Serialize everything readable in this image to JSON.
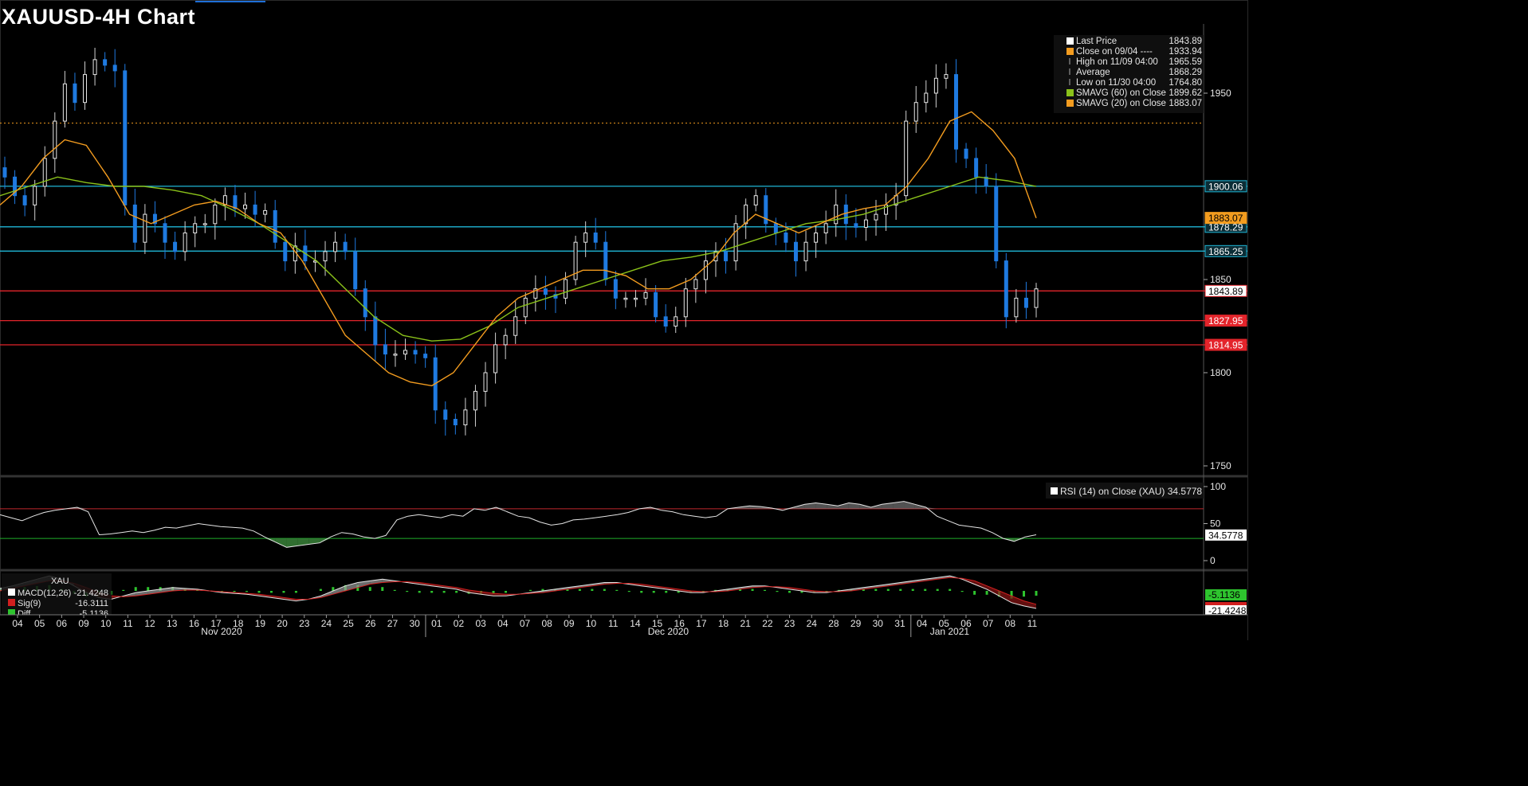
{
  "title": "XAUUSD-4H Chart",
  "colors": {
    "background": "#000000",
    "up_candle": "#e8e8e8",
    "down_candle": "#1f7ae0",
    "sma20": "#f39c1f",
    "sma60": "#8bc21a",
    "cyan_level": "#1fb6d6",
    "red_level": "#e3242b",
    "rsi_line": "#e6e6e6",
    "rsi_upper": "#c0272d",
    "rsi_lower": "#1fae2b",
    "macd_line": "#e6e6e6",
    "macd_signal": "#d11f1f",
    "macd_diff": "#2ec42e"
  },
  "chart_data": [
    {
      "type": "candlestick",
      "title": "XAUUSD-4H Chart",
      "ylim": [
        1740,
        1975
      ],
      "y_ticks": [
        1750,
        1800,
        1850,
        1950
      ],
      "x_ticks": [
        "04",
        "05",
        "06",
        "09",
        "10",
        "11",
        "12",
        "13",
        "16",
        "17",
        "18",
        "19",
        "20",
        "23",
        "24",
        "25",
        "26",
        "27",
        "30",
        "01",
        "02",
        "03",
        "04",
        "07",
        "08",
        "09",
        "10",
        "11",
        "14",
        "15",
        "16",
        "17",
        "18",
        "21",
        "22",
        "23",
        "24",
        "28",
        "29",
        "30",
        "31",
        "04",
        "05",
        "06",
        "07",
        "08",
        "11"
      ],
      "x_group_labels": [
        "Nov 2020",
        "Dec 2020",
        "Jan 2021"
      ],
      "ohlc_close_path": [
        1905,
        1895,
        1890,
        1900,
        1915,
        1935,
        1955,
        1945,
        1960,
        1968,
        1965,
        1962,
        1890,
        1870,
        1885,
        1880,
        1870,
        1865,
        1875,
        1880,
        1880,
        1890,
        1895,
        1888,
        1890,
        1885,
        1887,
        1870,
        1860,
        1868,
        1860,
        1860,
        1865,
        1870,
        1865,
        1845,
        1830,
        1815,
        1810,
        1810,
        1812,
        1810,
        1808,
        1780,
        1775,
        1772,
        1780,
        1790,
        1800,
        1815,
        1820,
        1830,
        1840,
        1845,
        1842,
        1840,
        1850,
        1870,
        1875,
        1870,
        1850,
        1840,
        1840,
        1840,
        1843,
        1830,
        1825,
        1830,
        1845,
        1850,
        1860,
        1865,
        1860,
        1880,
        1890,
        1895,
        1880,
        1875,
        1870,
        1860,
        1870,
        1875,
        1880,
        1890,
        1880,
        1878,
        1882,
        1885,
        1890,
        1895,
        1935,
        1945,
        1950,
        1958,
        1960,
        1920,
        1915,
        1905,
        1900,
        1860,
        1830,
        1840,
        1835,
        1845
      ],
      "series": [
        {
          "name": "SMAVG (20) on Close",
          "values": [
            1890,
            1900,
            1915,
            1925,
            1922,
            1905,
            1885,
            1880,
            1885,
            1890,
            1892,
            1888,
            1880,
            1875,
            1860,
            1840,
            1820,
            1810,
            1800,
            1795,
            1793,
            1800,
            1815,
            1830,
            1840,
            1845,
            1850,
            1855,
            1855,
            1852,
            1845,
            1845,
            1850,
            1860,
            1875,
            1885,
            1880,
            1875,
            1880,
            1885,
            1888,
            1890,
            1900,
            1915,
            1935,
            1940,
            1930,
            1915,
            1883
          ]
        },
        {
          "name": "SMAVG (60) on Close",
          "values": [
            1895,
            1900,
            1905,
            1902,
            1900,
            1900,
            1898,
            1895,
            1888,
            1880,
            1870,
            1860,
            1845,
            1830,
            1820,
            1817,
            1818,
            1825,
            1835,
            1840,
            1845,
            1850,
            1855,
            1860,
            1862,
            1865,
            1870,
            1875,
            1880,
            1882,
            1885,
            1890,
            1895,
            1900,
            1905,
            1903,
            1900
          ]
        }
      ],
      "levels": [
        {
          "label": "1900.06",
          "value": 1900.06,
          "style": "cyan"
        },
        {
          "label": "1878.29",
          "value": 1878.29,
          "style": "cyan"
        },
        {
          "label": "1865.25",
          "value": 1865.25,
          "style": "cyan"
        },
        {
          "label": "1843.89",
          "value": 1843.89,
          "style": "red"
        },
        {
          "label": "1827.95",
          "value": 1827.95,
          "style": "red"
        },
        {
          "label": "1814.95",
          "value": 1814.95,
          "style": "red"
        },
        {
          "label": "1883.07",
          "value": 1883.07,
          "style": "orange-tag"
        }
      ],
      "close_reference": 1933.94,
      "legend": [
        {
          "label": "Last Price",
          "value": "1843.89"
        },
        {
          "label": "Close on 09/04 ----",
          "value": "1933.94"
        },
        {
          "label": "High on 11/09 04:00",
          "value": "1965.59"
        },
        {
          "label": "Average",
          "value": "1868.29"
        },
        {
          "label": "Low on 11/30 04:00",
          "value": "1764.80"
        },
        {
          "label": "SMAVG (60)  on Close",
          "value": "1899.62"
        },
        {
          "label": "SMAVG (20)  on Close",
          "value": "1883.07"
        }
      ],
      "legend_placement": "top-right"
    },
    {
      "type": "line",
      "title": "RSI (14)  on Close (XAU) 34.5778",
      "ylim": [
        0,
        100
      ],
      "y_ticks": [
        0,
        50,
        100
      ],
      "thresholds": [
        70,
        30
      ],
      "current_label": "34.5778",
      "values": [
        62,
        58,
        54,
        60,
        65,
        68,
        70,
        72,
        66,
        35,
        36,
        38,
        40,
        38,
        41,
        45,
        44,
        47,
        50,
        48,
        46,
        45,
        44,
        40,
        32,
        25,
        18,
        20,
        22,
        24,
        32,
        38,
        36,
        32,
        30,
        34,
        55,
        60,
        62,
        60,
        58,
        62,
        60,
        70,
        68,
        72,
        66,
        60,
        58,
        52,
        48,
        50,
        55,
        56,
        58,
        60,
        62,
        65,
        70,
        72,
        68,
        66,
        62,
        60,
        58,
        60,
        70,
        72,
        74,
        73,
        71,
        68,
        72,
        76,
        78,
        76,
        74,
        78,
        76,
        72,
        76,
        78,
        80,
        76,
        72,
        60,
        54,
        48,
        46,
        44,
        38,
        30,
        26,
        32,
        35
      ]
    },
    {
      "type": "line",
      "title": "XAU",
      "series": [
        {
          "name": "MACD(12,26)",
          "value_label": "-21.4248"
        },
        {
          "name": "Sig(9)",
          "value_label": "-16.3111"
        },
        {
          "name": "Diff",
          "value_label": "-5.1136"
        }
      ],
      "right_labels": [
        "-5.1136",
        "-21.4248"
      ],
      "macd_values": [
        3,
        6,
        10,
        14,
        18,
        14,
        6,
        -2,
        -8,
        -10,
        -6,
        -2,
        0,
        2,
        4,
        3,
        2,
        0,
        -2,
        -3,
        -4,
        -6,
        -8,
        -10,
        -12,
        -10,
        -6,
        0,
        6,
        10,
        12,
        14,
        12,
        10,
        8,
        6,
        4,
        2,
        -2,
        -4,
        -6,
        -6,
        -4,
        -2,
        0,
        2,
        4,
        6,
        8,
        10,
        10,
        8,
        6,
        4,
        2,
        0,
        -2,
        -2,
        0,
        2,
        4,
        6,
        6,
        4,
        2,
        0,
        -2,
        -2,
        0,
        2,
        4,
        6,
        8,
        10,
        12,
        14,
        16,
        18,
        14,
        8,
        2,
        -6,
        -14,
        -18,
        -21
      ],
      "signal_values": [
        0,
        3,
        6,
        9,
        12,
        12,
        9,
        4,
        -2,
        -6,
        -7,
        -6,
        -4,
        -2,
        0,
        1,
        1,
        0,
        -1,
        -2,
        -3,
        -4,
        -6,
        -8,
        -10,
        -10,
        -8,
        -4,
        0,
        4,
        8,
        10,
        11,
        11,
        10,
        8,
        6,
        4,
        1,
        -1,
        -3,
        -4,
        -4,
        -3,
        -2,
        0,
        2,
        4,
        6,
        8,
        9,
        9,
        8,
        6,
        4,
        2,
        0,
        -1,
        -1,
        0,
        2,
        4,
        5,
        5,
        4,
        2,
        0,
        -1,
        -1,
        0,
        2,
        4,
        6,
        8,
        10,
        12,
        14,
        16,
        15,
        12,
        6,
        0,
        -6,
        -12,
        -16
      ]
    }
  ]
}
